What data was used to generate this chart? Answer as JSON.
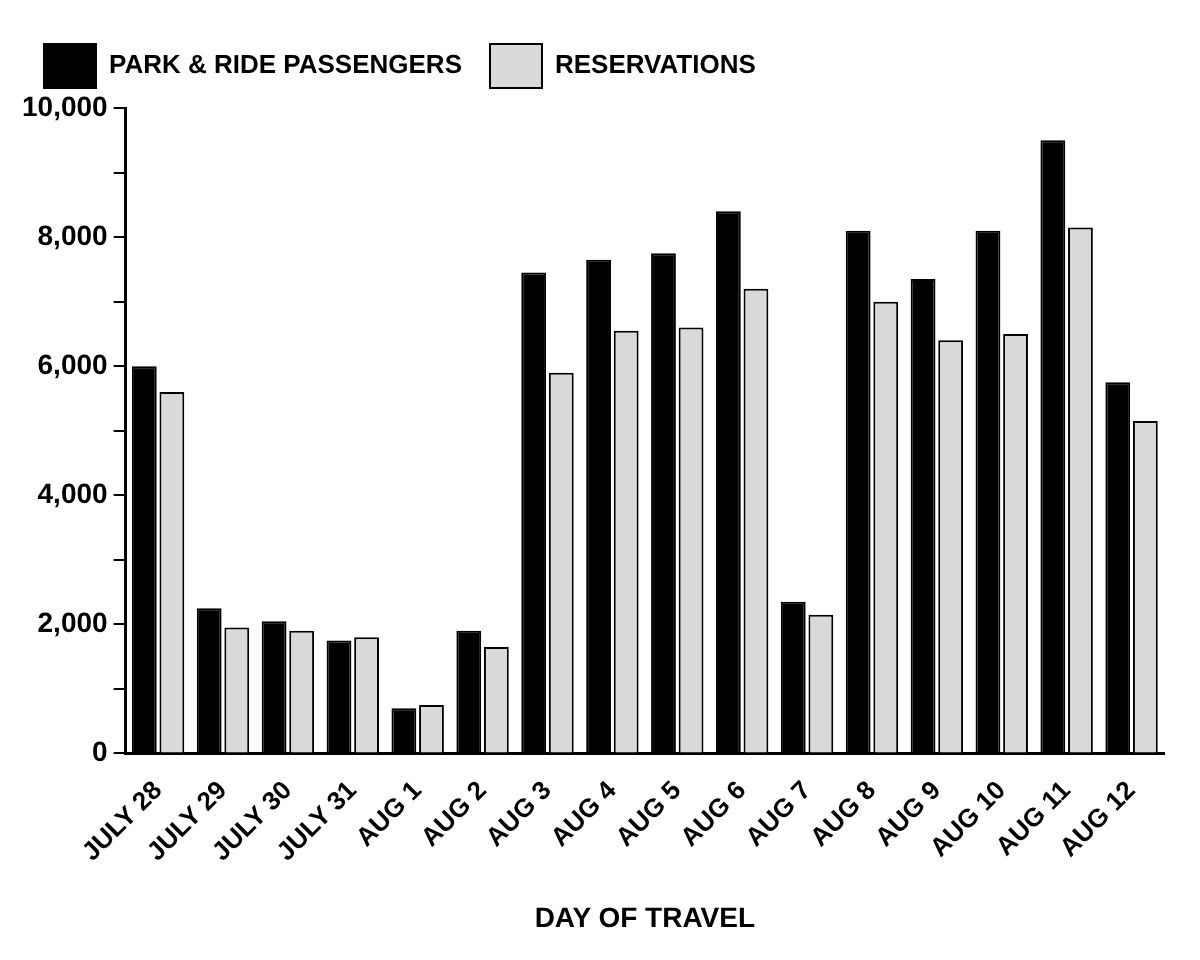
{
  "chart_data": {
    "type": "bar",
    "xlabel": "DAY OF TRAVEL",
    "categories": [
      "JULY 28",
      "JULY 29",
      "JULY 30",
      "JULY 31",
      "AUG 1",
      "AUG 2",
      "AUG 3",
      "AUG 4",
      "AUG 5",
      "AUG 6",
      "AUG 7",
      "AUG 8",
      "AUG 9",
      "AUG 10",
      "AUG 11",
      "AUG 12"
    ],
    "series": [
      {
        "name": "PARK & RIDE PASSENGERS",
        "color": "#000000",
        "values": [
          6000,
          2250,
          2050,
          1750,
          700,
          1900,
          7450,
          7650,
          7750,
          8400,
          2350,
          8100,
          7350,
          8100,
          9500,
          5750
        ]
      },
      {
        "name": "RESERVATIONS",
        "color": "#d9d9d9",
        "values": [
          5600,
          1950,
          1900,
          1800,
          750,
          1650,
          5900,
          6550,
          6600,
          7200,
          2150,
          7000,
          6400,
          6500,
          8150,
          5150
        ]
      }
    ],
    "ylim": [
      0,
      10000
    ],
    "yticks": [
      0,
      {
        "value": 1000,
        "label": null
      },
      {
        "value": 2000,
        "label": "2,000"
      },
      {
        "value": 3000,
        "label": null
      },
      {
        "value": 4000,
        "label": "4,000"
      },
      {
        "value": 5000,
        "label": null
      },
      {
        "value": 6000,
        "label": "6,000"
      },
      {
        "value": 7000,
        "label": null
      },
      {
        "value": 8000,
        "label": "8,000"
      },
      {
        "value": 9000,
        "label": null
      },
      {
        "value": 10000,
        "label": "10,000"
      }
    ],
    "grid": false,
    "legend": "top left"
  }
}
